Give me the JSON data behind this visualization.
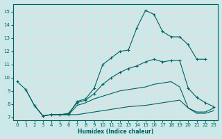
{
  "xlabel": "Humidex (Indice chaleur)",
  "ylabel": "",
  "bg_color": "#cce8e8",
  "grid_color": "#f0d8d8",
  "line_color": "#006060",
  "xlim": [
    -0.5,
    23.5
  ],
  "ylim": [
    6.8,
    15.6
  ],
  "yticks": [
    7,
    8,
    9,
    10,
    11,
    12,
    13,
    14,
    15
  ],
  "xticks": [
    0,
    1,
    2,
    3,
    4,
    5,
    6,
    7,
    8,
    9,
    10,
    11,
    12,
    13,
    14,
    15,
    16,
    17,
    18,
    19,
    20,
    21,
    22,
    23
  ],
  "line1_x": [
    0,
    1,
    2,
    3,
    4,
    5,
    6,
    7,
    8,
    9,
    10,
    11,
    12,
    13,
    14,
    15,
    16,
    17,
    18,
    19,
    20,
    21,
    22
  ],
  "line1_y": [
    9.7,
    9.1,
    7.9,
    7.1,
    7.2,
    7.2,
    7.2,
    8.2,
    8.4,
    9.2,
    11.0,
    11.5,
    12.0,
    12.1,
    13.8,
    15.1,
    14.8,
    13.5,
    13.1,
    13.1,
    12.5,
    11.4,
    11.4
  ],
  "line2_x": [
    1,
    2,
    3,
    4,
    5,
    6,
    7,
    8,
    9,
    10,
    11,
    12,
    13,
    14,
    15,
    16,
    17,
    18,
    19,
    20,
    21,
    22,
    23
  ],
  "line2_y": [
    9.1,
    7.9,
    7.1,
    7.2,
    7.2,
    7.3,
    8.1,
    8.3,
    8.8,
    9.5,
    10.0,
    10.4,
    10.7,
    10.9,
    11.2,
    11.4,
    11.2,
    11.3,
    11.3,
    9.2,
    8.5,
    8.1,
    7.8
  ],
  "line3_x": [
    2,
    3,
    4,
    5,
    6,
    7,
    8,
    9,
    10,
    11,
    12,
    13,
    14,
    15,
    16,
    17,
    18,
    19,
    20,
    21,
    22,
    23
  ],
  "line3_y": [
    7.9,
    7.1,
    7.2,
    7.2,
    7.2,
    7.9,
    8.1,
    8.4,
    8.6,
    8.8,
    9.0,
    9.1,
    9.2,
    9.3,
    9.5,
    9.6,
    9.7,
    9.3,
    7.7,
    7.3,
    7.3,
    7.5
  ],
  "line4_x": [
    3,
    4,
    5,
    6,
    7,
    8,
    9,
    10,
    11,
    12,
    13,
    14,
    15,
    16,
    17,
    18,
    19,
    20,
    21,
    22,
    23
  ],
  "line4_y": [
    7.1,
    7.2,
    7.2,
    7.2,
    7.2,
    7.3,
    7.4,
    7.5,
    7.6,
    7.7,
    7.8,
    7.85,
    7.9,
    8.0,
    8.1,
    8.2,
    8.3,
    7.7,
    7.4,
    7.4,
    7.7
  ]
}
